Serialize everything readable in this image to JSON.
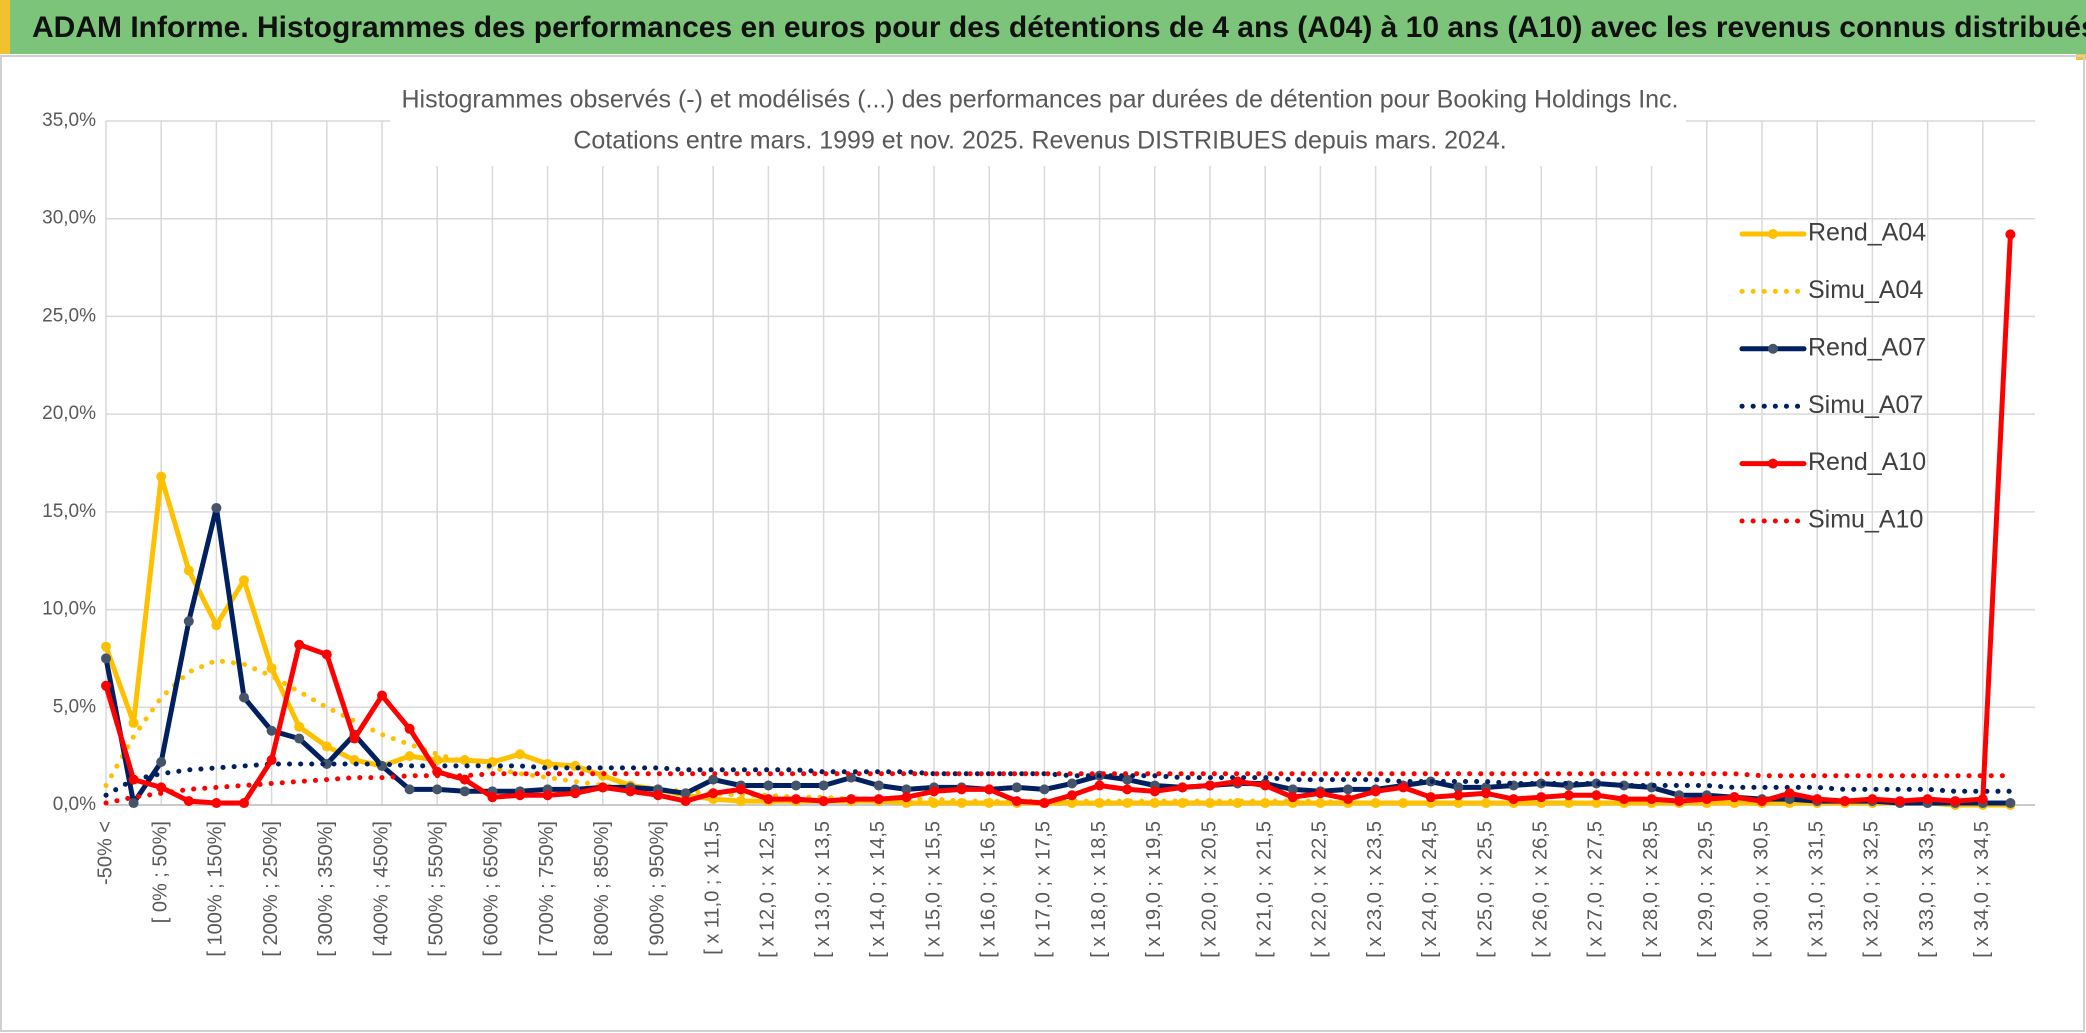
{
  "header": {
    "title": "ADAM Informe. Histogrammes des performances en euros pour des détentions de 4 ans (A04) à 10 ans (A10) avec les revenus connus distribués"
  },
  "chart_data": {
    "type": "line",
    "title": "Histogrammes observés (-) et modélisés (...) des performances par durées de détention pour Booking Holdings Inc.",
    "subtitle": "Cotations entre mars. 1999 et nov. 2025. Revenus DISTRIBUES depuis mars. 2024.",
    "categories": [
      "-50% <",
      null,
      "[ 0% ; 50%]",
      null,
      "[ 100% ; 150%]",
      null,
      "[ 200% ; 250%]",
      null,
      "[ 300% ; 350%]",
      null,
      "[ 400% ; 450%]",
      null,
      "[ 500% ; 550%]",
      null,
      "[ 600% ; 650%]",
      null,
      "[ 700% ; 750%]",
      null,
      "[ 800% ; 850%]",
      null,
      "[ 900% ; 950%]",
      null,
      "[ x 11,0 ; x 11,5",
      null,
      "[ x 12,0 ; x 12,5",
      null,
      "[ x 13,0 ; x 13,5",
      null,
      "[ x 14,0 ; x 14,5",
      null,
      "[ x 15,0 ; x 15,5",
      null,
      "[ x 16,0 ; x 16,5",
      null,
      "[ x 17,0 ; x 17,5",
      null,
      "[ x 18,0 ; x 18,5",
      null,
      "[ x 19,0 ; x 19,5",
      null,
      "[ x 20,0 ; x 20,5",
      null,
      "[ x 21,0 ; x 21,5",
      null,
      "[ x 22,0 ; x 22,5",
      null,
      "[ x 23,0 ; x 23,5",
      null,
      "[ x 24,0 ; x 24,5",
      null,
      "[ x 25,0 ; x 25,5",
      null,
      "[ x 26,0 ; x 26,5",
      null,
      "[ x 27,0 ; x 27,5",
      null,
      "[ x 28,0 ; x 28,5",
      null,
      "[ x 29,0 ; x 29,5",
      null,
      "[ x 30,0 ; x 30,5",
      null,
      "[ x 31,0 ; x 31,5",
      null,
      "[ x 32,0 ; x 32,5",
      null,
      "[ x 33,0 ; x 33,5",
      null,
      "[ x 34,0 ; x 34,5",
      null
    ],
    "series": [
      {
        "name": "Rend_A04",
        "color": "#ffc000",
        "style": "solid",
        "marker": true,
        "values": [
          8.1,
          4.2,
          16.8,
          12.0,
          9.2,
          11.5,
          7.0,
          4.0,
          3.0,
          2.3,
          2.0,
          2.5,
          2.3,
          2.3,
          2.2,
          2.6,
          2.1,
          2.0,
          1.5,
          1.0,
          0.8,
          0.5,
          0.3,
          0.2,
          0.2,
          0.2,
          0.2,
          0.2,
          0.2,
          0.1,
          0.1,
          0.1,
          0.1,
          0.1,
          0.1,
          0.1,
          0.1,
          0.1,
          0.1,
          0.1,
          0.1,
          0.1,
          0.1,
          0.1,
          0.1,
          0.1,
          0.1,
          0.1,
          0.1,
          0.1,
          0.1,
          0.1,
          0.1,
          0.1,
          0.1,
          0.1,
          0.1,
          0.1,
          0.1,
          0.1,
          0.1,
          0.1,
          0.1,
          0.1,
          0.1,
          0.1,
          0.1,
          0.0,
          0.0,
          0.0
        ]
      },
      {
        "name": "Simu_A04",
        "color": "#ffc000",
        "style": "dotted",
        "marker": false,
        "values": [
          1.0,
          3.5,
          5.5,
          6.8,
          7.4,
          7.2,
          6.6,
          5.8,
          5.0,
          4.3,
          3.6,
          3.1,
          2.6,
          2.2,
          1.9,
          1.6,
          1.4,
          1.2,
          1.0,
          0.9,
          0.8,
          0.7,
          0.6,
          0.5,
          0.5,
          0.4,
          0.4,
          0.3,
          0.3,
          0.3,
          0.3,
          0.2,
          0.2,
          0.2,
          0.2,
          0.2,
          0.2,
          0.2,
          0.2,
          0.2,
          0.2,
          0.2,
          0.2,
          0.2,
          0.2,
          0.1,
          0.1,
          0.1,
          0.1,
          0.1,
          0.1,
          0.1,
          0.1,
          0.1,
          0.1,
          0.1,
          0.1,
          0.1,
          0.1,
          0.1,
          0.1,
          0.1,
          0.1,
          0.1,
          0.1,
          0.1,
          0.1,
          0.1,
          0.1,
          0.1
        ]
      },
      {
        "name": "Rend_A07",
        "color": "#002060",
        "marker_color": "#44546a",
        "style": "solid",
        "marker": true,
        "values": [
          7.5,
          0.1,
          2.2,
          9.4,
          15.2,
          5.5,
          3.8,
          3.4,
          2.1,
          3.6,
          2.0,
          0.8,
          0.8,
          0.7,
          0.7,
          0.7,
          0.8,
          0.8,
          0.9,
          0.9,
          0.8,
          0.6,
          1.3,
          1.0,
          1.0,
          1.0,
          1.0,
          1.4,
          1.0,
          0.8,
          0.9,
          0.9,
          0.8,
          0.9,
          0.8,
          1.1,
          1.5,
          1.3,
          1.0,
          0.9,
          1.0,
          1.1,
          1.1,
          0.8,
          0.7,
          0.8,
          0.8,
          1.0,
          1.2,
          0.9,
          0.9,
          1.0,
          1.1,
          1.0,
          1.1,
          1.0,
          0.9,
          0.5,
          0.5,
          0.4,
          0.3,
          0.3,
          0.2,
          0.2,
          0.2,
          0.1,
          0.1,
          0.1,
          0.1,
          0.1
        ]
      },
      {
        "name": "Simu_A07",
        "color": "#002060",
        "style": "dotted",
        "marker": false,
        "values": [
          0.5,
          1.3,
          1.6,
          1.8,
          1.9,
          2.0,
          2.1,
          2.1,
          2.1,
          2.1,
          2.1,
          2.0,
          2.0,
          2.0,
          2.0,
          2.0,
          1.9,
          1.9,
          1.9,
          1.9,
          1.9,
          1.8,
          1.8,
          1.8,
          1.8,
          1.8,
          1.7,
          1.7,
          1.7,
          1.7,
          1.6,
          1.6,
          1.6,
          1.6,
          1.6,
          1.5,
          1.5,
          1.5,
          1.5,
          1.4,
          1.4,
          1.4,
          1.4,
          1.3,
          1.3,
          1.3,
          1.3,
          1.2,
          1.2,
          1.2,
          1.2,
          1.1,
          1.1,
          1.1,
          1.1,
          1.0,
          1.0,
          1.0,
          1.0,
          0.9,
          0.9,
          0.9,
          0.9,
          0.8,
          0.8,
          0.8,
          0.8,
          0.7,
          0.7,
          0.7
        ]
      },
      {
        "name": "Rend_A10",
        "color": "#ff0000",
        "style": "solid",
        "marker": true,
        "values": [
          6.1,
          1.3,
          0.9,
          0.2,
          0.1,
          0.1,
          2.3,
          8.2,
          7.7,
          3.4,
          5.6,
          3.9,
          1.7,
          1.3,
          0.4,
          0.5,
          0.5,
          0.6,
          0.9,
          0.7,
          0.5,
          0.2,
          0.6,
          0.8,
          0.3,
          0.3,
          0.2,
          0.3,
          0.3,
          0.4,
          0.7,
          0.8,
          0.8,
          0.2,
          0.1,
          0.5,
          1.0,
          0.8,
          0.7,
          0.9,
          1.0,
          1.2,
          1.0,
          0.4,
          0.6,
          0.3,
          0.7,
          0.9,
          0.4,
          0.5,
          0.6,
          0.3,
          0.4,
          0.5,
          0.5,
          0.3,
          0.3,
          0.2,
          0.3,
          0.4,
          0.2,
          0.6,
          0.3,
          0.2,
          0.3,
          0.2,
          0.3,
          0.2,
          0.3,
          29.2
        ]
      },
      {
        "name": "Simu_A10",
        "color": "#ff0000",
        "style": "dotted",
        "marker": false,
        "values": [
          0.1,
          0.4,
          0.6,
          0.8,
          0.9,
          1.0,
          1.1,
          1.2,
          1.3,
          1.4,
          1.4,
          1.5,
          1.5,
          1.5,
          1.6,
          1.6,
          1.6,
          1.6,
          1.6,
          1.6,
          1.6,
          1.6,
          1.6,
          1.6,
          1.6,
          1.6,
          1.6,
          1.6,
          1.6,
          1.6,
          1.6,
          1.6,
          1.6,
          1.6,
          1.6,
          1.6,
          1.6,
          1.6,
          1.6,
          1.6,
          1.6,
          1.6,
          1.6,
          1.6,
          1.6,
          1.6,
          1.6,
          1.6,
          1.6,
          1.6,
          1.6,
          1.6,
          1.6,
          1.6,
          1.6,
          1.6,
          1.6,
          1.6,
          1.6,
          1.6,
          1.5,
          1.5,
          1.5,
          1.5,
          1.5,
          1.5,
          1.5,
          1.5,
          1.5,
          1.5
        ]
      }
    ],
    "ylim": [
      0,
      35
    ],
    "yticks": [
      {
        "value": 0,
        "label": "0,0%"
      },
      {
        "value": 5,
        "label": "5,0%"
      },
      {
        "value": 10,
        "label": "10,0%"
      },
      {
        "value": 15,
        "label": "15,0%"
      },
      {
        "value": 20,
        "label": "20,0%"
      },
      {
        "value": 25,
        "label": "25,0%"
      },
      {
        "value": 30,
        "label": "30,0%"
      },
      {
        "value": 35,
        "label": "35,0%"
      }
    ],
    "grid": true,
    "legend": "right"
  }
}
